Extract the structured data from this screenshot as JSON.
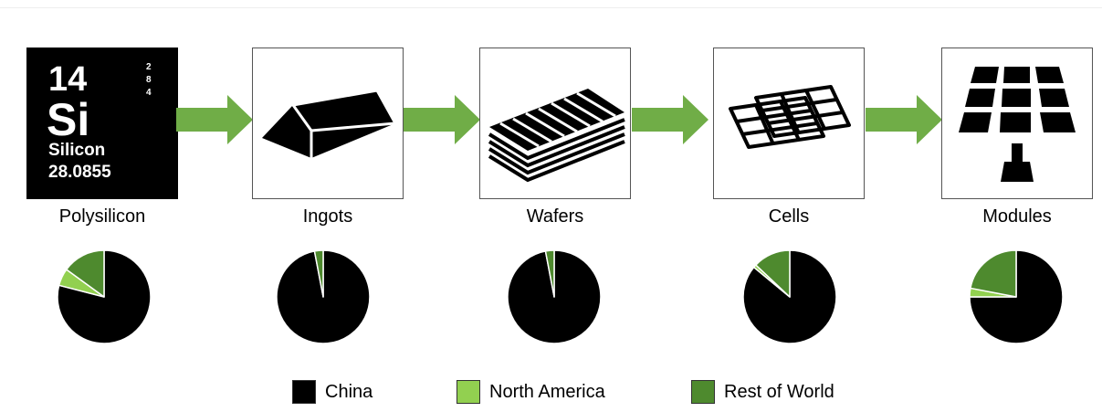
{
  "element_tile": {
    "atomic_number": "14",
    "symbol": "Si",
    "name": "Silicon",
    "mass": "28.0855",
    "shells": [
      "2",
      "8",
      "4"
    ]
  },
  "colors": {
    "china": "#000000",
    "north_america": "#92d050",
    "rest_of_world": "#4e8a2e",
    "arrow": "#70ad47"
  },
  "chart_data": [
    {
      "type": "pie",
      "title": "Polysilicon",
      "icon": "silicon-element-tile",
      "slices": [
        {
          "label": "China",
          "value": 79
        },
        {
          "label": "North America",
          "value": 6
        },
        {
          "label": "Rest of World",
          "value": 15
        }
      ]
    },
    {
      "type": "pie",
      "title": "Ingots",
      "icon": "ingot-icon",
      "slices": [
        {
          "label": "China",
          "value": 97
        },
        {
          "label": "North America",
          "value": 0
        },
        {
          "label": "Rest of World",
          "value": 3
        }
      ]
    },
    {
      "type": "pie",
      "title": "Wafers",
      "icon": "wafers-icon",
      "slices": [
        {
          "label": "China",
          "value": 97
        },
        {
          "label": "North America",
          "value": 0
        },
        {
          "label": "Rest of World",
          "value": 3
        }
      ]
    },
    {
      "type": "pie",
      "title": "Cells",
      "icon": "solar-cells-icon",
      "slices": [
        {
          "label": "China",
          "value": 86
        },
        {
          "label": "North America",
          "value": 1
        },
        {
          "label": "Rest of World",
          "value": 13
        }
      ]
    },
    {
      "type": "pie",
      "title": "Modules",
      "icon": "solar-panel-icon",
      "slices": [
        {
          "label": "China",
          "value": 75
        },
        {
          "label": "North America",
          "value": 3
        },
        {
          "label": "Rest of World",
          "value": 22
        }
      ]
    }
  ],
  "legend": [
    {
      "label": "China",
      "color": "#000000"
    },
    {
      "label": "North America",
      "color": "#92d050"
    },
    {
      "label": "Rest of World",
      "color": "#4e8a2e"
    }
  ]
}
